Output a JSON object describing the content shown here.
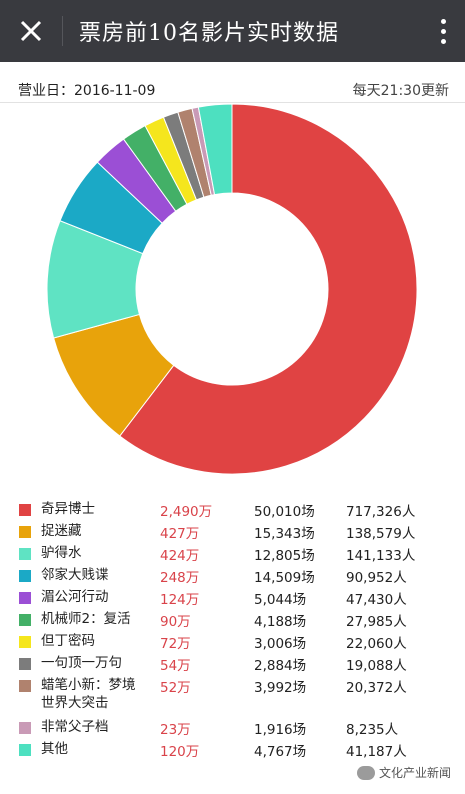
{
  "header": {
    "title": "票房前10名影片实时数据",
    "close_icon": "close-icon",
    "more_icon": "more-vertical-icon"
  },
  "info": {
    "date_label": "营业日：2016-11-09",
    "update_note": "每天21:30更新"
  },
  "chart_data": {
    "type": "pie",
    "style": "donut",
    "unit": "万",
    "categories": [
      "奇异博士",
      "捉迷藏",
      "驴得水",
      "邻家大贱谍",
      "湄公河行动",
      "机械师2：复活",
      "但丁密码",
      "一句顶一万句",
      "蜡笔小新：梦境世界大突击",
      "非常父子档",
      "其他"
    ],
    "values": [
      2490,
      427,
      424,
      248,
      124,
      90,
      72,
      54,
      52,
      23,
      120
    ],
    "colors": [
      "#e04343",
      "#e8a30b",
      "#5fe3c3",
      "#1ba9c6",
      "#9b4fd5",
      "#43b067",
      "#f5e61d",
      "#7c7c7c",
      "#b0826e",
      "#c99ab6",
      "#4de0c0"
    ]
  },
  "table": {
    "rows": [
      {
        "name": "奇异博士",
        "boxoffice": "2,490万",
        "screenings": "50,010场",
        "attendance": "717,326人"
      },
      {
        "name": "捉迷藏",
        "boxoffice": "427万",
        "screenings": "15,343场",
        "attendance": "138,579人"
      },
      {
        "name": "驴得水",
        "boxoffice": "424万",
        "screenings": "12,805场",
        "attendance": "141,133人"
      },
      {
        "name": "邻家大贱谍",
        "boxoffice": "248万",
        "screenings": "14,509场",
        "attendance": "90,952人"
      },
      {
        "name": "湄公河行动",
        "boxoffice": "124万",
        "screenings": "5,044场",
        "attendance": "47,430人"
      },
      {
        "name": "机械师2：复活",
        "boxoffice": "90万",
        "screenings": "4,188场",
        "attendance": "27,985人"
      },
      {
        "name": "但丁密码",
        "boxoffice": "72万",
        "screenings": "3,006场",
        "attendance": "22,060人"
      },
      {
        "name": "一句顶一万句",
        "boxoffice": "54万",
        "screenings": "2,884场",
        "attendance": "19,088人"
      },
      {
        "name": "蜡笔小新：梦境世界大突击",
        "name_line1": "蜡笔小新：梦境",
        "name_line2": "世界大突击",
        "boxoffice": "52万",
        "screenings": "3,992场",
        "attendance": "20,372人"
      },
      {
        "name": "非常父子档",
        "boxoffice": "23万",
        "screenings": "1,916场",
        "attendance": "8,235人"
      },
      {
        "name": "其他",
        "boxoffice": "120万",
        "screenings": "4,767场",
        "attendance": "41,187人"
      }
    ]
  },
  "watermark": {
    "text": "文化产业新闻",
    "icon": "wechat-icon"
  }
}
